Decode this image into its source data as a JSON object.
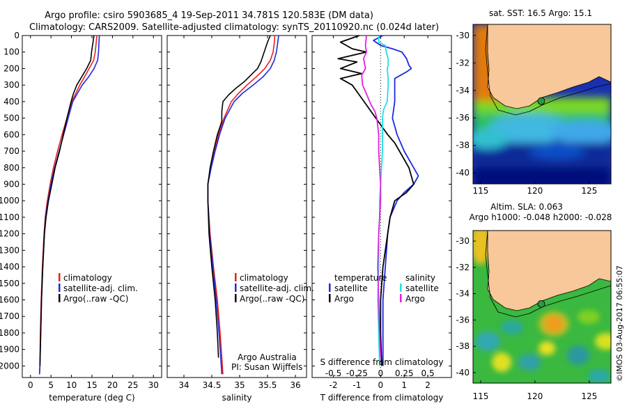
{
  "title_line1": "Argo profile: csiro 5903685_4 19-Sep-2011 34.781S 120.583E (DM data)",
  "title_line2": "Climatology: CARS2009. Satellite-adjusted climatology: synTS_20110920.nc (0.024d later)",
  "colors": {
    "climatology": "#e8201a",
    "satellite": "#1c28e0",
    "argo": "#000000",
    "sal_sat": "#20e0e8",
    "sal_argo": "#e020e0",
    "land": "#f8c79a"
  },
  "chart_data": [
    {
      "type": "line",
      "name": "temperature",
      "xlabel": "temperature (deg C)",
      "xlim": [
        -2,
        32
      ],
      "xticks": [
        0,
        5,
        10,
        15,
        20,
        25,
        30
      ],
      "ylim": [
        0,
        2070
      ],
      "yticks": [
        0,
        100,
        200,
        300,
        400,
        500,
        600,
        700,
        800,
        900,
        1000,
        1100,
        1200,
        1300,
        1400,
        1500,
        1600,
        1700,
        1800,
        1900,
        2000
      ],
      "legend": [
        "climatology",
        "satellite-adj. clim.",
        "Argo(..raw -QC)"
      ],
      "series": [
        {
          "name": "climatology",
          "depth": [
            0,
            50,
            100,
            150,
            200,
            250,
            300,
            400,
            500,
            600,
            700,
            800,
            900,
            1000,
            1100,
            1200,
            1400,
            1600,
            1800,
            2000,
            2050
          ],
          "values": [
            16.2,
            16.0,
            15.8,
            15.4,
            14.3,
            13.2,
            12.0,
            10.1,
            8.9,
            7.7,
            6.6,
            5.6,
            4.8,
            4.1,
            3.6,
            3.3,
            2.9,
            2.6,
            2.4,
            2.3,
            2.2
          ]
        },
        {
          "name": "satellite-adj. clim.",
          "depth": [
            0,
            50,
            100,
            150,
            200,
            250,
            300,
            400,
            500,
            600,
            700,
            800,
            900,
            1000,
            1100,
            1200,
            1400,
            1600,
            1800,
            2000,
            2050
          ],
          "values": [
            16.8,
            16.7,
            16.6,
            16.4,
            15.5,
            14.2,
            12.6,
            10.3,
            9.2,
            8.1,
            7.0,
            5.9,
            5.0,
            4.3,
            3.7,
            3.4,
            3.0,
            2.7,
            2.5,
            2.3,
            2.2
          ]
        },
        {
          "name": "Argo",
          "depth": [
            0,
            50,
            100,
            150,
            200,
            250,
            300,
            350,
            400,
            500,
            600,
            700,
            800,
            900,
            1000,
            1100,
            1200,
            1400,
            1600,
            1800,
            2000
          ],
          "values": [
            15.5,
            15.2,
            14.9,
            14.7,
            13.7,
            12.5,
            11.3,
            10.5,
            9.9,
            8.9,
            8.0,
            7.1,
            6.0,
            5.2,
            4.4,
            3.8,
            3.4,
            3.0,
            2.7,
            2.5,
            2.3
          ]
        }
      ]
    },
    {
      "type": "line",
      "name": "salinity",
      "xlabel": "salinity",
      "xlim": [
        33.7,
        36.2
      ],
      "xticks": [
        34,
        34.5,
        35,
        35.5,
        36
      ],
      "ylim": [
        0,
        2070
      ],
      "legend": [
        "climatology",
        "satellite-adj. clim.",
        "Argo(..raw -QC)"
      ],
      "annotation": [
        "Argo Australia",
        "PI: Susan Wijffels"
      ],
      "series": [
        {
          "name": "climatology",
          "depth": [
            0,
            50,
            100,
            150,
            200,
            250,
            300,
            350,
            400,
            500,
            600,
            700,
            800,
            900,
            1000,
            1200,
            1400,
            1600,
            1800,
            2000,
            2050
          ],
          "values": [
            35.63,
            35.62,
            35.6,
            35.55,
            35.45,
            35.3,
            35.13,
            34.98,
            34.85,
            34.72,
            34.62,
            34.55,
            34.48,
            34.43,
            34.43,
            34.47,
            34.53,
            34.6,
            34.65,
            34.69,
            34.7
          ]
        },
        {
          "name": "satellite-adj. clim.",
          "depth": [
            0,
            50,
            100,
            150,
            200,
            250,
            300,
            350,
            400,
            500,
            600,
            700,
            800,
            900,
            1000,
            1200,
            1400,
            1600,
            1800,
            2000,
            2050
          ],
          "values": [
            35.7,
            35.68,
            35.66,
            35.62,
            35.55,
            35.42,
            35.24,
            35.05,
            34.9,
            34.74,
            34.64,
            34.56,
            34.49,
            34.43,
            34.43,
            34.46,
            34.52,
            34.58,
            34.63,
            34.67,
            34.68
          ]
        },
        {
          "name": "Argo",
          "depth": [
            0,
            40,
            80,
            120,
            160,
            200,
            240,
            280,
            320,
            360,
            400,
            460,
            520,
            600,
            700,
            800,
            900,
            1000,
            1200,
            1400,
            1600,
            1800,
            1950
          ],
          "values": [
            35.55,
            35.5,
            35.46,
            35.42,
            35.38,
            35.32,
            35.2,
            35.08,
            34.93,
            34.8,
            34.7,
            34.68,
            34.68,
            34.6,
            34.53,
            34.47,
            34.43,
            34.43,
            34.45,
            34.5,
            34.56,
            34.6,
            34.62
          ]
        }
      ]
    },
    {
      "type": "line",
      "name": "differences",
      "xlabel": "T difference from climatology",
      "xlabel_top": "S difference from climatology",
      "xlim": [
        -2.9,
        3
      ],
      "xticks": [
        -2,
        -1,
        0,
        1,
        2
      ],
      "s_ticks": [
        -0.5,
        -0.25,
        0,
        0.25,
        0.5
      ],
      "s_tick_labels": [
        "-0.5",
        "-0.25",
        "0",
        "0.25",
        "0.5"
      ],
      "legend_temperature_title": "temperature",
      "legend_salinity_title": "salinity",
      "legend_temperature": [
        "satellite",
        "Argo"
      ],
      "legend_salinity": [
        "satellite",
        "Argo"
      ],
      "series": [
        {
          "name": "temperature satellite",
          "depth": [
            0,
            30,
            60,
            80,
            100,
            140,
            180,
            200,
            220,
            260,
            300,
            400,
            500,
            600,
            700,
            800,
            850,
            900,
            950,
            1000,
            1100,
            1200,
            1400,
            1600,
            1800,
            2000
          ],
          "values": [
            0.1,
            -0.3,
            0.0,
            0.5,
            0.9,
            1.1,
            1.2,
            1.3,
            1.1,
            0.6,
            0.6,
            0.6,
            0.5,
            0.7,
            1.0,
            1.4,
            1.6,
            1.4,
            1.0,
            0.7,
            0.4,
            0.3,
            0.2,
            0.1,
            0.1,
            0.1
          ]
        },
        {
          "name": "temperature Argo",
          "depth": [
            0,
            40,
            80,
            100,
            140,
            160,
            200,
            230,
            260,
            300,
            340,
            380,
            420,
            460,
            500,
            540,
            600,
            650,
            700,
            800,
            900,
            950,
            1000,
            1100,
            1200,
            1400,
            1600,
            1800,
            2000
          ],
          "values": [
            -0.9,
            -1.7,
            -1.2,
            -0.6,
            -1.8,
            -1.0,
            -1.7,
            -0.8,
            -1.7,
            -1.2,
            -1.0,
            -0.8,
            -0.6,
            -0.4,
            -0.2,
            0.0,
            0.3,
            0.6,
            0.8,
            1.2,
            1.4,
            1.1,
            0.6,
            0.4,
            0.3,
            0.1,
            0.0,
            0.0,
            0.05
          ]
        },
        {
          "name": "salinity satellite",
          "depth": [
            0,
            40,
            60,
            100,
            140,
            180,
            200,
            260,
            300,
            400,
            450,
            500,
            600,
            700,
            800,
            900,
            1000,
            1100,
            1200,
            1400,
            1600,
            1800,
            2000
          ],
          "values": [
            -0.02,
            -0.02,
            0.05,
            0.06,
            0.08,
            0.08,
            0.07,
            0.08,
            0.08,
            0.07,
            0.03,
            0.02,
            0.02,
            0.02,
            0.01,
            0.0,
            -0.01,
            -0.01,
            -0.02,
            -0.02,
            -0.03,
            -0.02,
            -0.01
          ]
        },
        {
          "name": "salinity Argo",
          "depth": [
            0,
            60,
            100,
            140,
            200,
            240,
            300,
            340,
            380,
            420,
            460,
            500,
            600,
            700,
            800,
            900,
            1000,
            1200,
            1400,
            1600,
            1800,
            1950
          ],
          "values": [
            -0.15,
            -0.16,
            -0.15,
            -0.18,
            -0.16,
            -0.2,
            -0.19,
            -0.16,
            -0.13,
            -0.1,
            -0.06,
            -0.04,
            -0.02,
            -0.02,
            -0.01,
            0.0,
            0.0,
            -0.02,
            -0.03,
            -0.02,
            -0.01,
            0.0
          ]
        }
      ]
    },
    {
      "type": "heatmap",
      "name": "sst_map",
      "title": "sat. SST: 16.5  Argo: 15.1",
      "xlim": [
        114.3,
        127
      ],
      "ylim": [
        -40.8,
        -29.2
      ],
      "xticks": [
        115,
        120,
        125
      ],
      "yticks": [
        -30,
        -32,
        -34,
        -36,
        -38,
        -40
      ],
      "ytick_labels": [
        "-30",
        "-32",
        "-34",
        "-36",
        "-38",
        "-40"
      ],
      "marker": {
        "lon": 120.583,
        "lat": -34.781
      }
    },
    {
      "type": "heatmap",
      "name": "sla_map",
      "title": "Altim. SLA: 0.063",
      "subtitle": "Argo h1000: -0.048  h2000: -0.028",
      "xlim": [
        114.3,
        127
      ],
      "ylim": [
        -40.8,
        -29.2
      ],
      "xticks": [
        115,
        120,
        125
      ],
      "yticks": [
        -30,
        -32,
        -34,
        -36,
        -38,
        -40
      ],
      "ytick_labels": [
        "-30",
        "-32",
        "-34",
        "-36",
        "-38",
        "-40"
      ],
      "marker": {
        "lon": 120.583,
        "lat": -34.781
      }
    }
  ],
  "credit": "©IMOS 03-Aug-2017 06:55:07"
}
